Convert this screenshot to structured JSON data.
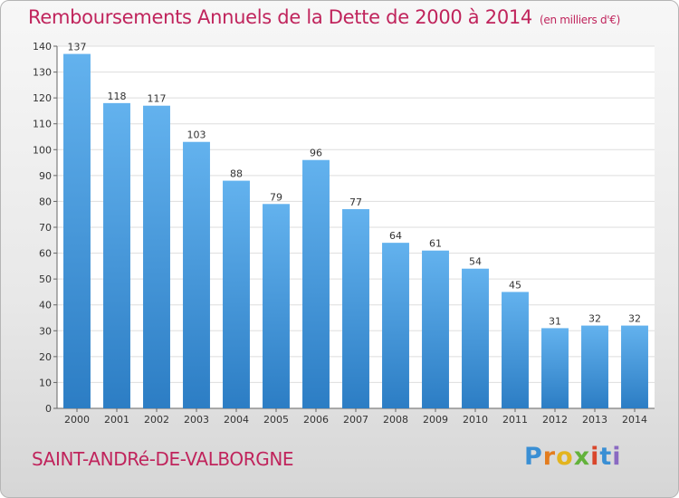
{
  "header": {
    "title": "Remboursements Annuels de la Dette de 2000 à 2014",
    "subtitle": "(en milliers d'€)"
  },
  "footer": {
    "commune": "SAINT-ANDRé-DE-VALBORGNE",
    "logo_letters": [
      "P",
      "r",
      "o",
      "x",
      "i",
      "t",
      "i"
    ]
  },
  "colors": {
    "bar_top": "#63b2ee",
    "bar_bottom": "#2c7dc4",
    "title": "#c0245c",
    "grid": "#dddddd"
  },
  "chart_data": {
    "type": "bar",
    "title": "Remboursements Annuels de la Dette de 2000 à 2014",
    "subtitle": "(en milliers d'€)",
    "categories": [
      "2000",
      "2001",
      "2002",
      "2003",
      "2004",
      "2005",
      "2006",
      "2007",
      "2008",
      "2009",
      "2010",
      "2011",
      "2012",
      "2013",
      "2014"
    ],
    "values": [
      137,
      118,
      117,
      103,
      88,
      79,
      96,
      77,
      64,
      61,
      54,
      45,
      31,
      32,
      32
    ],
    "ylim": [
      0,
      140
    ],
    "yticks": [
      0,
      10,
      20,
      30,
      40,
      50,
      60,
      70,
      80,
      90,
      100,
      110,
      120,
      130,
      140
    ],
    "grid": true,
    "data_labels": true
  }
}
